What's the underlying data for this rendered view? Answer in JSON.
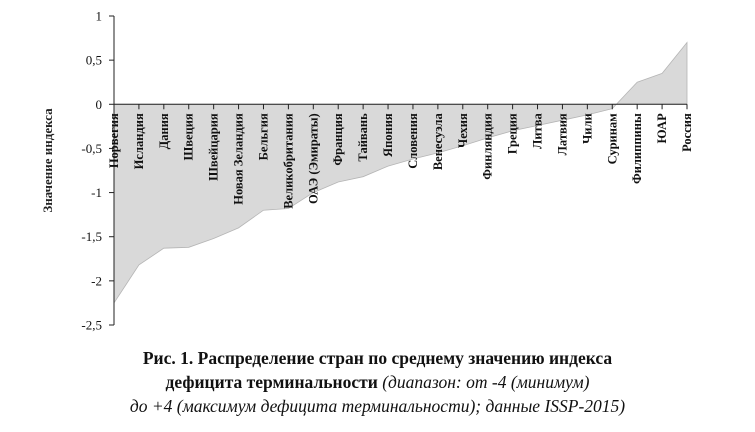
{
  "chart_data": {
    "type": "area",
    "ylabel": "Значение индекса",
    "ylim": [
      -2.5,
      1
    ],
    "yticks": [
      1,
      0.5,
      0,
      -0.5,
      -1,
      -1.5,
      -2,
      -2.5
    ],
    "ytick_labels": [
      "1",
      "0,5",
      "0",
      "-0,5",
      "-1",
      "-1,5",
      "-2",
      "-2,5"
    ],
    "categories": [
      "Норвегия",
      "Исландия",
      "Дания",
      "Швеция",
      "Швейцария",
      "Новая Зеландия",
      "Бельгия",
      "Великобритания",
      "ОАЭ (Эмираты)",
      "Франция",
      "Тайвань",
      "Япония",
      "Словения",
      "Венесуэла",
      "Чехия",
      "Финляндия",
      "Греция",
      "Литва",
      "Латвия",
      "Чили",
      "Суринам",
      "Филиппины",
      "ЮАР",
      "Россия"
    ],
    "values": [
      -2.25,
      -1.82,
      -1.63,
      -1.62,
      -1.52,
      -1.4,
      -1.2,
      -1.18,
      -1.0,
      -0.88,
      -0.82,
      -0.7,
      -0.62,
      -0.55,
      -0.47,
      -0.38,
      -0.3,
      -0.24,
      -0.18,
      -0.12,
      -0.05,
      0.25,
      0.35,
      0.7
    ],
    "fill_color": "#d9d9d9",
    "stroke_color": "#b5b5b5"
  },
  "caption": {
    "line1_bold": "Рис.  1. Распределение стран по среднему значению индекса",
    "line2_bold": "дефицита терминальности",
    "line2_italic": " (диапазон: от -4 (минимум)",
    "line3_italic": "до +4 (максимум дефицита терминальности); данные ISSP-2015)"
  }
}
